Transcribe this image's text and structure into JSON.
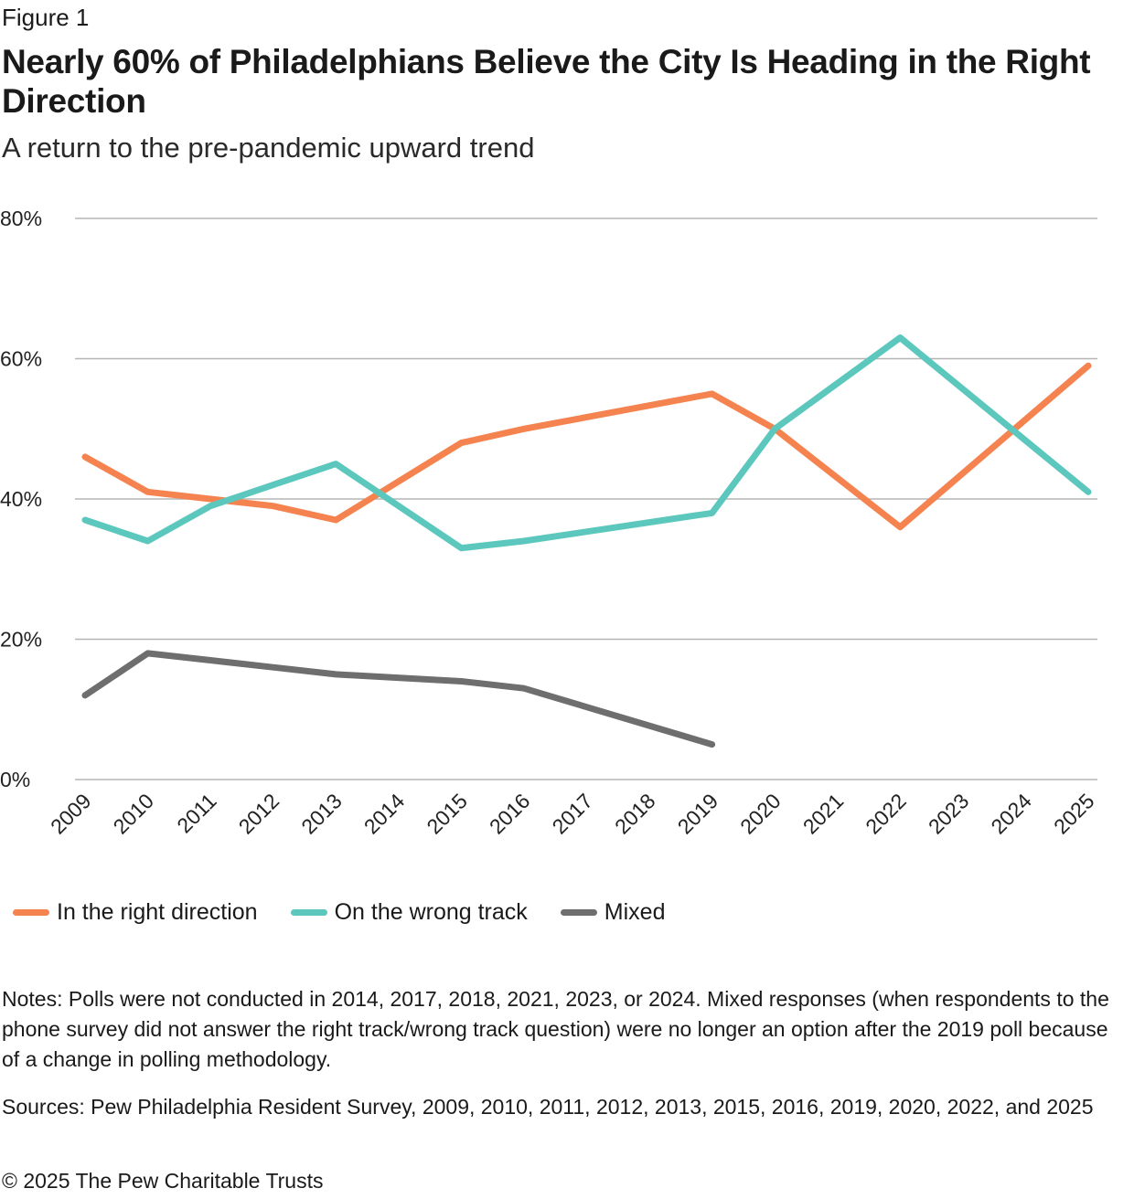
{
  "figure_label": "Figure 1",
  "title": "Nearly 60% of Philadelphians Believe the City Is Heading in the Right Direction",
  "subtitle": "A return to the pre-pandemic upward trend",
  "notes": "Notes: Polls were not conducted in 2014, 2017, 2018, 2021, 2023, or 2024. Mixed responses (when respondents to the phone survey did not answer the right track/wrong track question) were no longer an option after the 2019 poll because of a change in polling methodology.",
  "sources": "Sources: Pew Philadelphia Resident Survey, 2009, 2010, 2011, 2012, 2013, 2015, 2016, 2019, 2020, 2022, and 2025",
  "copyright": "© 2025 The Pew Charitable Trusts",
  "chart_data": {
    "type": "line",
    "x": [
      2009,
      2010,
      2011,
      2012,
      2013,
      2014,
      2015,
      2016,
      2017,
      2018,
      2019,
      2020,
      2021,
      2022,
      2023,
      2024,
      2025
    ],
    "x_tick_labels": [
      "2009",
      "2010",
      "2011",
      "2012",
      "2013",
      "2014",
      "2015",
      "2016",
      "2017",
      "2018",
      "2019",
      "2020",
      "2021",
      "2022",
      "2023",
      "2024",
      "2025"
    ],
    "ylim": [
      0,
      80
    ],
    "y_ticks": [
      0,
      20,
      40,
      60,
      80
    ],
    "y_tick_labels": [
      "0%",
      "20%",
      "40%",
      "60%",
      "80%"
    ],
    "grid": true,
    "legend_position": "bottom-left",
    "series": [
      {
        "name": "In the right direction",
        "color": "#f5834f",
        "points": [
          [
            2009,
            46
          ],
          [
            2010,
            41
          ],
          [
            2011,
            40
          ],
          [
            2012,
            39
          ],
          [
            2013,
            37
          ],
          [
            2015,
            48
          ],
          [
            2016,
            50
          ],
          [
            2019,
            55
          ],
          [
            2020,
            50
          ],
          [
            2022,
            36
          ],
          [
            2025,
            59
          ]
        ]
      },
      {
        "name": "On the wrong track",
        "color": "#5cc8bd",
        "points": [
          [
            2009,
            37
          ],
          [
            2010,
            34
          ],
          [
            2011,
            39
          ],
          [
            2012,
            42
          ],
          [
            2013,
            45
          ],
          [
            2015,
            33
          ],
          [
            2016,
            34
          ],
          [
            2019,
            38
          ],
          [
            2020,
            50
          ],
          [
            2022,
            63
          ],
          [
            2025,
            41
          ]
        ]
      },
      {
        "name": "Mixed",
        "color": "#6e6e6e",
        "points": [
          [
            2009,
            12
          ],
          [
            2010,
            18
          ],
          [
            2011,
            17
          ],
          [
            2012,
            16
          ],
          [
            2013,
            15
          ],
          [
            2015,
            14
          ],
          [
            2016,
            13
          ],
          [
            2019,
            5
          ]
        ]
      }
    ]
  }
}
